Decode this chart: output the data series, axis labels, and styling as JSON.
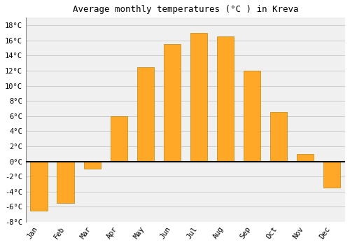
{
  "title": "Average monthly temperatures (°C ) in Kreva",
  "months": [
    "Jan",
    "Feb",
    "Mar",
    "Apr",
    "May",
    "Jun",
    "Jul",
    "Aug",
    "Sep",
    "Oct",
    "Nov",
    "Dec"
  ],
  "temperatures": [
    -6.5,
    -5.5,
    -1.0,
    6.0,
    12.5,
    15.5,
    17.0,
    16.5,
    12.0,
    6.5,
    1.0,
    -3.5
  ],
  "bar_color": "#FFA726",
  "bar_edge_color": "#B8860B",
  "fig_background_color": "#FFFFFF",
  "plot_background_color": "#F0F0F0",
  "grid_color": "#CCCCCC",
  "ylim": [
    -8,
    19
  ],
  "yticks": [
    -8,
    -6,
    -4,
    -2,
    0,
    2,
    4,
    6,
    8,
    10,
    12,
    14,
    16,
    18
  ],
  "ytick_labels": [
    "-8°C",
    "-6°C",
    "-4°C",
    "-2°C",
    "0°C",
    "2°C",
    "4°C",
    "6°C",
    "8°C",
    "10°C",
    "12°C",
    "14°C",
    "16°C",
    "18°C"
  ],
  "title_fontsize": 9,
  "tick_fontsize": 7.5,
  "font_family": "monospace",
  "bar_width": 0.65
}
